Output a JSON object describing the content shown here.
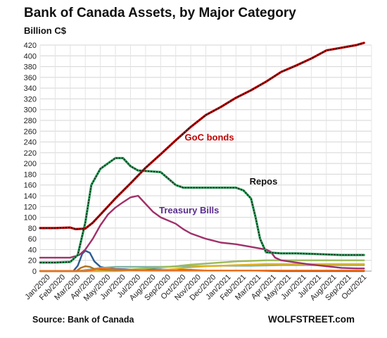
{
  "chart_data": {
    "type": "line",
    "title": "Bank of Canada Assets, by Major Category",
    "ylabel": "Billion C$",
    "xlabel": "",
    "ylim": [
      0,
      420
    ],
    "yticks": [
      0,
      20,
      40,
      60,
      80,
      100,
      120,
      140,
      160,
      180,
      200,
      220,
      240,
      260,
      280,
      300,
      320,
      340,
      360,
      380,
      400,
      420
    ],
    "categories": [
      "Jan/2020",
      "Feb/2020",
      "Mar/2020",
      "Apr/2020",
      "May/2020",
      "Jun/2020",
      "Jul/2020",
      "Aug/2020",
      "Sep/2020",
      "Oct/2020",
      "Nov/2020",
      "Dec/2020",
      "Jan/2021",
      "Feb/2021",
      "Mar/2021",
      "Apr/2021",
      "May/2021",
      "Jun/2021",
      "Jul/2021",
      "Aug/2021",
      "Sep/2021",
      "Oct/2021"
    ],
    "grid": true,
    "legend": "inline labels",
    "series": [
      {
        "name": "GoC bonds",
        "color": "#c00000",
        "label_at": [
          9.6,
          243
        ],
        "points": [
          [
            0.0,
            80
          ],
          [
            1.0,
            80
          ],
          [
            2.0,
            81
          ],
          [
            2.35,
            78
          ],
          [
            3.0,
            79
          ],
          [
            3.5,
            90
          ],
          [
            4.0,
            105
          ],
          [
            5.0,
            135
          ],
          [
            6.0,
            163
          ],
          [
            7.0,
            192
          ],
          [
            8.0,
            217
          ],
          [
            9.0,
            243
          ],
          [
            10.0,
            268
          ],
          [
            11.0,
            290
          ],
          [
            12.0,
            305
          ],
          [
            13.0,
            322
          ],
          [
            14.0,
            336
          ],
          [
            15.0,
            352
          ],
          [
            16.0,
            370
          ],
          [
            17.0,
            382
          ],
          [
            18.0,
            395
          ],
          [
            19.0,
            410
          ],
          [
            20.0,
            415
          ],
          [
            21.0,
            420
          ],
          [
            21.5,
            424
          ]
        ]
      },
      {
        "name": "Repos",
        "color": "#2a2a2a",
        "label_at": [
          13.9,
          161
        ],
        "points": [
          [
            0.0,
            16
          ],
          [
            1.0,
            16
          ],
          [
            2.0,
            17
          ],
          [
            2.5,
            30
          ],
          [
            3.0,
            90
          ],
          [
            3.4,
            160
          ],
          [
            4.0,
            190
          ],
          [
            4.5,
            200
          ],
          [
            5.0,
            210
          ],
          [
            5.5,
            210
          ],
          [
            6.0,
            195
          ],
          [
            6.5,
            187
          ],
          [
            7.0,
            186
          ],
          [
            8.0,
            184
          ],
          [
            8.5,
            172
          ],
          [
            9.0,
            160
          ],
          [
            9.5,
            155
          ],
          [
            10.0,
            155
          ],
          [
            11.0,
            155
          ],
          [
            12.0,
            155
          ],
          [
            13.0,
            155
          ],
          [
            13.5,
            150
          ],
          [
            14.0,
            135
          ],
          [
            14.3,
            100
          ],
          [
            14.6,
            60
          ],
          [
            15.0,
            35
          ],
          [
            16.0,
            33
          ],
          [
            17.0,
            33
          ],
          [
            18.0,
            32
          ],
          [
            19.0,
            31
          ],
          [
            20.0,
            30
          ],
          [
            21.0,
            30
          ],
          [
            21.5,
            30
          ]
        ]
      },
      {
        "name": "Treasury Bills",
        "color": "#a0306a",
        "label_at": [
          7.9,
          107
        ],
        "points": [
          [
            0.0,
            25
          ],
          [
            1.0,
            25
          ],
          [
            2.0,
            25
          ],
          [
            2.6,
            30
          ],
          [
            3.0,
            40
          ],
          [
            3.5,
            60
          ],
          [
            4.0,
            85
          ],
          [
            4.5,
            105
          ],
          [
            5.0,
            118
          ],
          [
            5.5,
            128
          ],
          [
            6.0,
            137
          ],
          [
            6.5,
            140
          ],
          [
            7.0,
            125
          ],
          [
            7.5,
            110
          ],
          [
            8.0,
            100
          ],
          [
            9.0,
            88
          ],
          [
            9.5,
            78
          ],
          [
            10.0,
            70
          ],
          [
            11.0,
            60
          ],
          [
            12.0,
            53
          ],
          [
            13.0,
            50
          ],
          [
            14.0,
            45
          ],
          [
            15.0,
            40
          ],
          [
            15.3,
            36
          ],
          [
            15.6,
            25
          ],
          [
            16.0,
            20
          ],
          [
            17.0,
            16
          ],
          [
            18.0,
            12
          ],
          [
            19.0,
            9
          ],
          [
            20.0,
            6
          ],
          [
            21.0,
            5
          ],
          [
            21.5,
            5
          ]
        ]
      },
      {
        "color": "#2c5a93",
        "points": [
          [
            0.0,
            0
          ],
          [
            2.2,
            0
          ],
          [
            2.5,
            10
          ],
          [
            2.8,
            32
          ],
          [
            3.0,
            38
          ],
          [
            3.3,
            34
          ],
          [
            3.6,
            18
          ],
          [
            4.0,
            8
          ],
          [
            4.5,
            5
          ],
          [
            5.0,
            4
          ],
          [
            6.0,
            3
          ],
          [
            7.0,
            3
          ],
          [
            8.0,
            3
          ],
          [
            9.0,
            2
          ],
          [
            10.0,
            2
          ],
          [
            11.0,
            1
          ],
          [
            12.0,
            1
          ],
          [
            14.0,
            1
          ],
          [
            16.0,
            0
          ],
          [
            21.5,
            0
          ]
        ]
      },
      {
        "color": "#7fb3a3",
        "points": [
          [
            0.0,
            0
          ],
          [
            2.5,
            0
          ],
          [
            3.0,
            2
          ],
          [
            4.0,
            6
          ],
          [
            5.0,
            8
          ],
          [
            6.0,
            8
          ],
          [
            8.0,
            8
          ],
          [
            10.0,
            9
          ],
          [
            12.0,
            10
          ],
          [
            14.0,
            10
          ],
          [
            16.0,
            11
          ],
          [
            18.0,
            11
          ],
          [
            20.0,
            11
          ],
          [
            21.5,
            11
          ]
        ]
      },
      {
        "color": "#9bbb59",
        "points": [
          [
            0.0,
            0
          ],
          [
            4.0,
            0
          ],
          [
            5.0,
            1
          ],
          [
            6.0,
            3
          ],
          [
            7.0,
            5
          ],
          [
            8.0,
            7
          ],
          [
            9.0,
            9
          ],
          [
            10.0,
            12
          ],
          [
            11.0,
            14
          ],
          [
            12.0,
            16
          ],
          [
            13.0,
            18
          ],
          [
            14.0,
            19
          ],
          [
            15.0,
            20
          ],
          [
            17.0,
            20
          ],
          [
            19.0,
            20
          ],
          [
            21.5,
            20
          ]
        ]
      },
      {
        "color": "#e0b020",
        "points": [
          [
            0.0,
            0
          ],
          [
            5.0,
            0
          ],
          [
            6.0,
            1
          ],
          [
            8.0,
            2
          ],
          [
            9.0,
            4
          ],
          [
            10.0,
            7
          ],
          [
            11.0,
            9
          ],
          [
            12.0,
            10
          ],
          [
            13.0,
            11
          ],
          [
            14.0,
            12
          ],
          [
            15.0,
            13
          ],
          [
            16.0,
            13
          ],
          [
            18.0,
            13
          ],
          [
            20.0,
            13
          ],
          [
            21.5,
            13
          ]
        ]
      },
      {
        "color": "#b07020",
        "points": [
          [
            0.0,
            0
          ],
          [
            2.4,
            0
          ],
          [
            2.7,
            6
          ],
          [
            3.0,
            9
          ],
          [
            3.3,
            8
          ],
          [
            3.6,
            4
          ],
          [
            4.0,
            3
          ],
          [
            5.0,
            2
          ],
          [
            6.0,
            2
          ],
          [
            8.0,
            1
          ],
          [
            10.0,
            1
          ],
          [
            21.5,
            1
          ]
        ]
      },
      {
        "color": "#e87020",
        "points": [
          [
            0.0,
            0
          ],
          [
            3.0,
            0
          ],
          [
            3.5,
            2
          ],
          [
            4.0,
            5
          ],
          [
            4.5,
            4
          ],
          [
            5.0,
            3
          ],
          [
            6.0,
            2
          ],
          [
            8.0,
            1
          ],
          [
            21.5,
            1
          ]
        ]
      }
    ],
    "source": "Source: Bank of Canada",
    "brand": "WOLFSTREET.com"
  }
}
